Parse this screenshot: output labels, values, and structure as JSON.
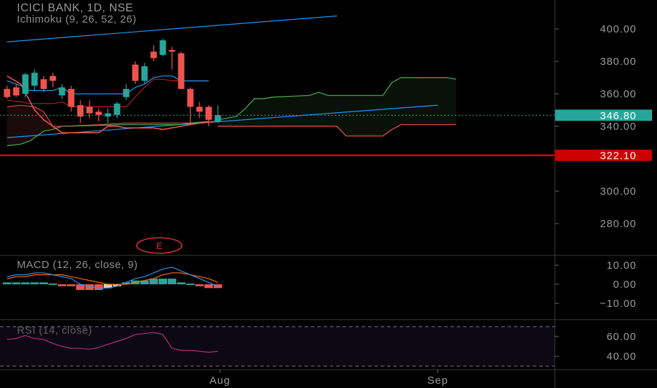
{
  "header": {
    "title": "ICICI BANK, 1D, NSE",
    "ichimoku_label": "Ichimoku (9, 26, 52, 26)",
    "macd_label": "MACD (12, 26, close, 9)",
    "rsi_label": "RSI (14, close)"
  },
  "colors": {
    "background": "#000000",
    "up": "#26a69a",
    "down": "#ef5350",
    "trendline": "#2196f3",
    "support": "#ff0000",
    "last_price": "#26a69a",
    "cloud_green": "#4caf50",
    "cloud_red": "#ef5350",
    "macd_line": "#2196f3",
    "signal_line": "#ff6d00",
    "rsi_line": "#b52b7c"
  },
  "chart_data": {
    "type": "candlestick",
    "symbol": "ICICI BANK",
    "interval": "1D",
    "exchange": "NSE",
    "price_axis": {
      "ticks": [
        "400.00",
        "380.00",
        "360.00",
        "340.00",
        "300.00",
        "280.00"
      ],
      "range": [
        262,
        416
      ]
    },
    "time_axis": {
      "ticks": [
        "Aug",
        "Sep"
      ]
    },
    "last_price": {
      "value": 346.8,
      "label": "346.80"
    },
    "support_level": {
      "value": 322.1,
      "label": "322.10"
    },
    "earnings_marker": "E",
    "candles": [
      {
        "o": 363,
        "h": 365,
        "l": 357,
        "c": 358
      },
      {
        "o": 364,
        "h": 366,
        "l": 358,
        "c": 359
      },
      {
        "o": 360,
        "h": 373,
        "l": 358,
        "c": 372
      },
      {
        "o": 365,
        "h": 375,
        "l": 362,
        "c": 373
      },
      {
        "o": 369,
        "h": 371,
        "l": 361,
        "c": 363
      },
      {
        "o": 371,
        "h": 373,
        "l": 364,
        "c": 368
      },
      {
        "o": 359,
        "h": 366,
        "l": 357,
        "c": 364
      },
      {
        "o": 363,
        "h": 365,
        "l": 349,
        "c": 352
      },
      {
        "o": 353,
        "h": 356,
        "l": 342,
        "c": 346
      },
      {
        "o": 352,
        "h": 356,
        "l": 345,
        "c": 348
      },
      {
        "o": 349,
        "h": 351,
        "l": 343,
        "c": 347
      },
      {
        "o": 346,
        "h": 351,
        "l": 342,
        "c": 348
      },
      {
        "o": 347,
        "h": 355,
        "l": 345,
        "c": 354
      },
      {
        "o": 358,
        "h": 366,
        "l": 356,
        "c": 363
      },
      {
        "o": 378,
        "h": 380,
        "l": 366,
        "c": 368
      },
      {
        "o": 368,
        "h": 379,
        "l": 366,
        "c": 377
      },
      {
        "o": 386,
        "h": 390,
        "l": 380,
        "c": 382
      },
      {
        "o": 384,
        "h": 394,
        "l": 383,
        "c": 393
      },
      {
        "o": 387,
        "h": 389,
        "l": 375,
        "c": 386
      },
      {
        "o": 385,
        "h": 386,
        "l": 363,
        "c": 363
      },
      {
        "o": 363,
        "h": 364,
        "l": 342,
        "c": 352
      },
      {
        "o": 352,
        "h": 355,
        "l": 345,
        "c": 349
      },
      {
        "o": 352,
        "h": 353,
        "l": 340,
        "c": 344
      },
      {
        "o": 343,
        "h": 353,
        "l": 342,
        "c": 346.8
      }
    ],
    "overlays": {
      "tenkan": [
        [
          0,
          368
        ],
        [
          1.5,
          365
        ],
        [
          2.5,
          362
        ],
        [
          5,
          362
        ],
        [
          6,
          364
        ],
        [
          7,
          360
        ],
        [
          13,
          360
        ],
        [
          14,
          364
        ],
        [
          15,
          366
        ],
        [
          16,
          370
        ],
        [
          17,
          371
        ],
        [
          18,
          371
        ],
        [
          19,
          368
        ],
        [
          22,
          368
        ]
      ],
      "kijun": [
        [
          0,
          356
        ],
        [
          1.5,
          355
        ],
        [
          2.5,
          354
        ],
        [
          5,
          354
        ],
        [
          6,
          355
        ],
        [
          7,
          352
        ],
        [
          13,
          352
        ],
        [
          14,
          358
        ],
        [
          15,
          364
        ],
        [
          16,
          369
        ],
        [
          17,
          369
        ],
        [
          18,
          368
        ],
        [
          22,
          368
        ]
      ],
      "chikou": [
        [
          0,
          371
        ],
        [
          1.5,
          366
        ],
        [
          3,
          350
        ],
        [
          4,
          344
        ],
        [
          5,
          340
        ],
        [
          6,
          336
        ],
        [
          10,
          336
        ],
        [
          11,
          340
        ],
        [
          12,
          340
        ],
        [
          13,
          339
        ],
        [
          15,
          339
        ],
        [
          16,
          339
        ],
        [
          17,
          338
        ],
        [
          19,
          340
        ],
        [
          20,
          341
        ],
        [
          21,
          342
        ],
        [
          23,
          343
        ]
      ],
      "senkou_a": [
        [
          23,
          344
        ],
        [
          25,
          346
        ],
        [
          26,
          351
        ],
        [
          27,
          357
        ],
        [
          28,
          357
        ],
        [
          29,
          358
        ],
        [
          33,
          359
        ],
        [
          34,
          361
        ],
        [
          35,
          359
        ],
        [
          40,
          359
        ],
        [
          41,
          359
        ],
        [
          42,
          367
        ],
        [
          43,
          370
        ],
        [
          48,
          370
        ],
        [
          49,
          369
        ]
      ],
      "senkou_b": [
        [
          23,
          340
        ],
        [
          36,
          340
        ],
        [
          37,
          334
        ],
        [
          41,
          334
        ],
        [
          42,
          338
        ],
        [
          43,
          341
        ],
        [
          49,
          341
        ]
      ],
      "trend_lower": [
        [
          0,
          333
        ],
        [
          47,
          353
        ]
      ],
      "trend_upper": [
        [
          0,
          392
        ],
        [
          36,
          408
        ]
      ],
      "lower_green": [
        [
          0,
          328
        ],
        [
          1.5,
          329
        ],
        [
          2.5,
          331
        ],
        [
          4,
          337
        ],
        [
          5,
          338
        ],
        [
          6,
          340
        ],
        [
          13,
          341
        ],
        [
          17,
          341
        ],
        [
          19,
          341
        ],
        [
          20,
          342
        ],
        [
          22,
          343
        ]
      ],
      "lower_red_left": [
        [
          0,
          352
        ],
        [
          1.5,
          353
        ],
        [
          3,
          352
        ],
        [
          4,
          349
        ],
        [
          5,
          340
        ],
        [
          6,
          340
        ],
        [
          10,
          341
        ],
        [
          13,
          342
        ],
        [
          17,
          342
        ],
        [
          19,
          342
        ],
        [
          20,
          342
        ]
      ]
    },
    "macd": {
      "axis_ticks": [
        "10.00",
        "0.00",
        "−10.00"
      ],
      "range": [
        -14,
        13
      ],
      "macd_line": [
        4,
        5,
        5,
        6,
        6,
        5,
        4,
        3,
        0,
        -1,
        -2,
        -2,
        -1,
        1,
        3,
        4,
        6,
        8,
        9,
        7,
        5,
        3,
        1,
        -1
      ],
      "signal_line": [
        3,
        4,
        4,
        5,
        5,
        5,
        5,
        4,
        3,
        2,
        1,
        0,
        0,
        0,
        1,
        2,
        3,
        5,
        6,
        6,
        5,
        4,
        3,
        1
      ],
      "histogram": [
        1,
        1,
        1,
        1,
        1,
        0,
        -1,
        -1,
        -3,
        -3,
        -3,
        -2,
        -1,
        1,
        2,
        2,
        3,
        3,
        3,
        1,
        0,
        -1,
        -2,
        -2
      ]
    },
    "rsi": {
      "axis_ticks": [
        "60.00",
        "40.00"
      ],
      "range": [
        30,
        73
      ],
      "bands": [
        70,
        30
      ],
      "values": [
        57,
        58,
        61,
        58,
        57,
        53,
        50,
        48,
        48,
        47,
        49,
        52,
        55,
        58,
        62,
        63,
        64,
        62,
        48,
        46,
        46,
        45,
        44,
        45
      ]
    }
  }
}
